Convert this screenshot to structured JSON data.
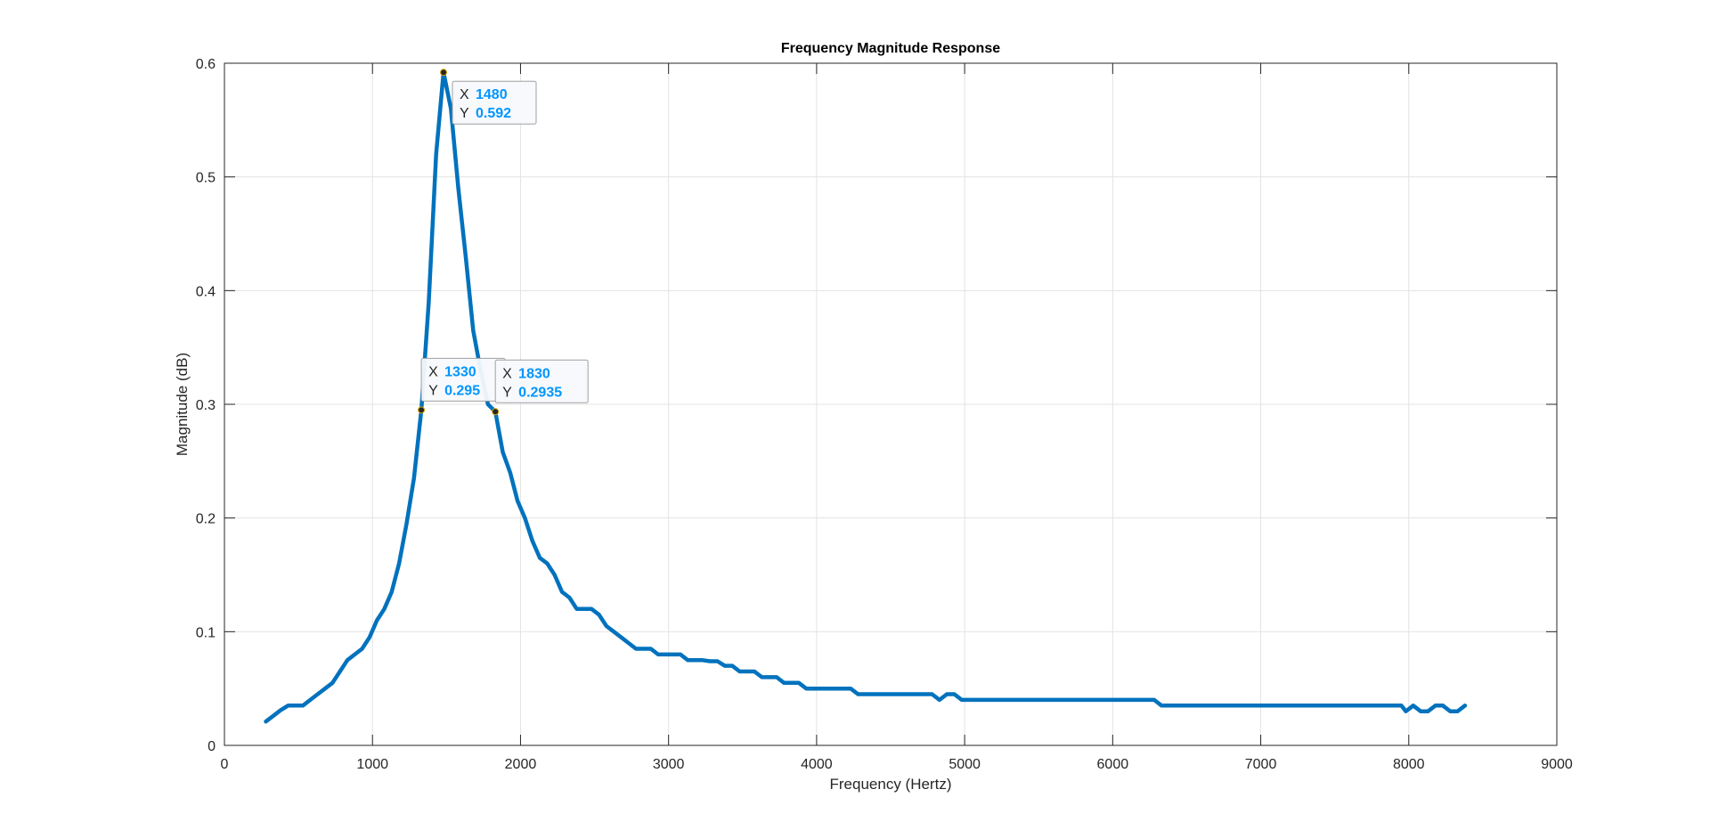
{
  "chart_data": {
    "type": "line",
    "title": "Frequency Magnitude Response",
    "xlabel": "Frequency (Hertz)",
    "ylabel": "Magnitude (dB)",
    "xlim": [
      0,
      9000
    ],
    "ylim": [
      0,
      0.6
    ],
    "xticks": [
      0,
      1000,
      2000,
      3000,
      4000,
      5000,
      6000,
      7000,
      8000,
      9000
    ],
    "xtick_labels": [
      "0",
      "1000",
      "2000",
      "3000",
      "4000",
      "5000",
      "6000",
      "7000",
      "8000",
      "9000"
    ],
    "yticks": [
      0,
      0.1,
      0.2,
      0.3,
      0.4,
      0.5,
      0.6
    ],
    "ytick_labels": [
      "0",
      "0.1",
      "0.2",
      "0.3",
      "0.4",
      "0.5",
      "0.6"
    ],
    "grid": true,
    "line_color": "#0072BD",
    "series": [
      {
        "x": [
          280,
          330,
          380,
          430,
          480,
          530,
          580,
          630,
          680,
          730,
          780,
          830,
          880,
          930,
          980,
          1030,
          1080,
          1130,
          1180,
          1230,
          1280,
          1330,
          1380,
          1430,
          1480,
          1530,
          1580,
          1630,
          1680,
          1730,
          1780,
          1830,
          1880,
          1930,
          1980,
          2030,
          2080,
          2130,
          2180,
          2230,
          2280,
          2330,
          2380,
          2430,
          2480,
          2530,
          2580,
          2630,
          2680,
          2730,
          2780,
          2830,
          2880,
          2930,
          2980,
          3030,
          3080,
          3130,
          3180,
          3230,
          3280,
          3330,
          3380,
          3430,
          3480,
          3530,
          3580,
          3630,
          3680,
          3730,
          3780,
          3830,
          3880,
          3930,
          3980,
          4030,
          4080,
          4130,
          4180,
          4230,
          4280,
          4330,
          4380,
          4430,
          4480,
          4530,
          4580,
          4630,
          4680,
          4730,
          4780,
          4830,
          4880,
          4930,
          4980,
          5030,
          5080,
          5130,
          5200,
          5300,
          5400,
          5500,
          5600,
          5700,
          5800,
          5900,
          6000,
          6100,
          6200,
          6250,
          6280,
          6330,
          6380,
          6500,
          6600,
          6700,
          6800,
          6900,
          7000,
          7100,
          7200,
          7300,
          7400,
          7500,
          7600,
          7700,
          7800,
          7900,
          7950,
          7980,
          8030,
          8080,
          8130,
          8180,
          8230,
          8280,
          8330,
          8380
        ],
        "y": [
          0.021,
          0.026,
          0.031,
          0.035,
          0.035,
          0.035,
          0.04,
          0.045,
          0.05,
          0.055,
          0.065,
          0.075,
          0.08,
          0.085,
          0.095,
          0.11,
          0.12,
          0.135,
          0.16,
          0.195,
          0.235,
          0.295,
          0.39,
          0.52,
          0.592,
          0.56,
          0.49,
          0.43,
          0.365,
          0.33,
          0.3,
          0.2935,
          0.258,
          0.24,
          0.215,
          0.2,
          0.18,
          0.165,
          0.16,
          0.15,
          0.135,
          0.13,
          0.12,
          0.12,
          0.12,
          0.115,
          0.105,
          0.1,
          0.095,
          0.09,
          0.085,
          0.085,
          0.085,
          0.08,
          0.08,
          0.08,
          0.08,
          0.075,
          0.075,
          0.075,
          0.074,
          0.074,
          0.07,
          0.07,
          0.065,
          0.065,
          0.065,
          0.06,
          0.06,
          0.06,
          0.055,
          0.055,
          0.055,
          0.05,
          0.05,
          0.05,
          0.05,
          0.05,
          0.05,
          0.05,
          0.045,
          0.045,
          0.045,
          0.045,
          0.045,
          0.045,
          0.045,
          0.045,
          0.045,
          0.045,
          0.045,
          0.04,
          0.045,
          0.045,
          0.04,
          0.04,
          0.04,
          0.04,
          0.04,
          0.04,
          0.04,
          0.04,
          0.04,
          0.04,
          0.04,
          0.04,
          0.04,
          0.04,
          0.04,
          0.04,
          0.04,
          0.035,
          0.035,
          0.035,
          0.035,
          0.035,
          0.035,
          0.035,
          0.035,
          0.035,
          0.035,
          0.035,
          0.035,
          0.035,
          0.035,
          0.035,
          0.035,
          0.035,
          0.035,
          0.03,
          0.035,
          0.03,
          0.03,
          0.035,
          0.035,
          0.03,
          0.03,
          0.035
        ]
      }
    ],
    "datatips": [
      {
        "x_key": "X",
        "y_key": "Y",
        "x": 1480,
        "y": 0.592,
        "x_text": "1480",
        "y_text": "0.592"
      },
      {
        "x_key": "X",
        "y_key": "Y",
        "x": 1330,
        "y": 0.295,
        "x_text": "1330",
        "y_text": "0.295"
      },
      {
        "x_key": "X",
        "y_key": "Y",
        "x": 1830,
        "y": 0.2935,
        "x_text": "1830",
        "y_text": "0.2935"
      }
    ],
    "datatip_value_color": "#0096FF"
  }
}
